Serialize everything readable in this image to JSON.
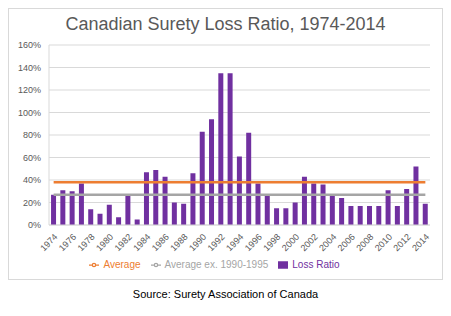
{
  "chart_data": {
    "type": "bar",
    "title": "Canadian Surety Loss Ratio, 1974-2014",
    "source": "Source: Surety Association of Canada",
    "categories": [
      "1974",
      null,
      "1976",
      null,
      "1978",
      null,
      "1980",
      null,
      "1982",
      null,
      "1984",
      null,
      "1986",
      null,
      "1988",
      null,
      "1990",
      null,
      "1992",
      null,
      "1994",
      null,
      "1996",
      null,
      "1998",
      null,
      "2000",
      null,
      "2002",
      null,
      "2004",
      null,
      "2006",
      null,
      "2008",
      null,
      "2010",
      null,
      "2012",
      null,
      "2014"
    ],
    "series": [
      {
        "name": "Loss Ratio",
        "type": "bar",
        "color": "#7030a0",
        "values": [
          27,
          31,
          30,
          37,
          14,
          10,
          18,
          7,
          26,
          5,
          47,
          49,
          43,
          20,
          19,
          46,
          83,
          94,
          135,
          135,
          61,
          82,
          37,
          27,
          15,
          15,
          20,
          43,
          37,
          36,
          26,
          24,
          17,
          17,
          17,
          17,
          31,
          17,
          32,
          52,
          19
        ]
      },
      {
        "name": "Average",
        "type": "line",
        "color": "#ed7d31",
        "values": [
          38,
          38,
          38,
          38,
          38,
          38,
          38,
          38,
          38,
          38,
          38,
          38,
          38,
          38,
          38,
          38,
          38,
          38,
          38,
          38,
          38,
          38,
          38,
          38,
          38,
          38,
          38,
          38,
          38,
          38,
          38,
          38,
          38,
          38,
          38,
          38,
          38,
          38,
          38,
          38,
          38
        ]
      },
      {
        "name": "Average ex. 1990-1995",
        "type": "line",
        "color": "#a5a5a5",
        "values": [
          27,
          27,
          27,
          27,
          27,
          27,
          27,
          27,
          27,
          27,
          27,
          27,
          27,
          27,
          27,
          27,
          27,
          27,
          27,
          27,
          27,
          27,
          27,
          27,
          27,
          27,
          27,
          27,
          27,
          27,
          27,
          27,
          27,
          27,
          27,
          27,
          27,
          27,
          27,
          27,
          27
        ]
      }
    ],
    "ylim": [
      0,
      160
    ],
    "yticks": [
      {
        "value": 0,
        "label": "0%"
      },
      {
        "value": 20,
        "label": "20%"
      },
      {
        "value": 40,
        "label": "40%"
      },
      {
        "value": 60,
        "label": "60%"
      },
      {
        "value": 80,
        "label": "80%"
      },
      {
        "value": 100,
        "label": "100%"
      },
      {
        "value": 120,
        "label": "120%"
      },
      {
        "value": 140,
        "label": "140%"
      },
      {
        "value": 160,
        "label": "160%"
      }
    ],
    "grid": true,
    "legend": "bottom"
  }
}
